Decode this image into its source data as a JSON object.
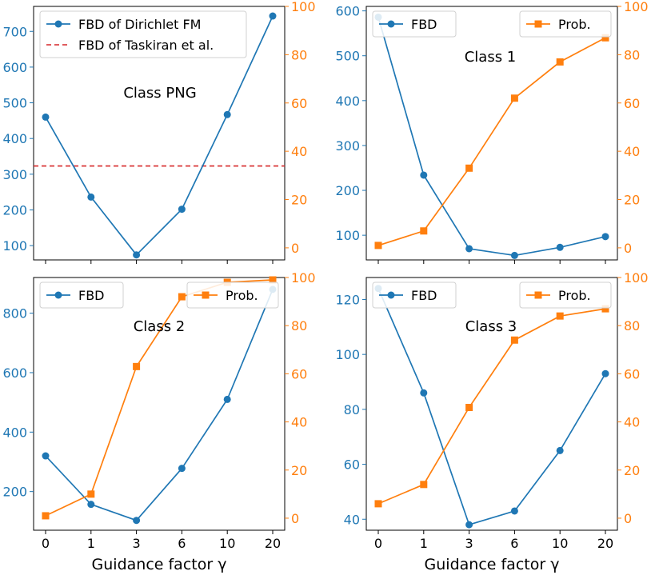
{
  "colors": {
    "fbd": "#1f77b4",
    "prob": "#ff7f0e",
    "baseline": "#d62728"
  },
  "shared_xlabel": "Guidance factor γ",
  "chart_data": [
    {
      "type": "line",
      "annotation": "Class PNG",
      "categories": [
        "0",
        "1",
        "3",
        "6",
        "10",
        "20"
      ],
      "y_left": {
        "lim": [
          60,
          770
        ],
        "ticks": [
          "100",
          "200",
          "300",
          "400",
          "500",
          "600",
          "700"
        ]
      },
      "y_right": {
        "lim": [
          -5,
          100
        ],
        "ticks": [
          "0",
          "20",
          "40",
          "60",
          "80",
          "100"
        ]
      },
      "series": [
        {
          "name": "FBD of Dirichlet FM",
          "axis": "left",
          "marker": "circle",
          "color": "#1f77b4",
          "values": [
            460,
            236,
            74,
            202,
            467,
            743
          ]
        }
      ],
      "reference_lines": [
        {
          "name": "FBD of Taskiran et al.",
          "axis": "left",
          "value": 323,
          "style": "dashed",
          "color": "#d62728"
        }
      ],
      "legend": {
        "placement": "top-left",
        "entries": [
          "FBD of Dirichlet FM",
          "FBD of Taskiran et al."
        ]
      },
      "show_x_ticklabels": false
    },
    {
      "type": "line",
      "annotation": "Class 1",
      "categories": [
        "0",
        "1",
        "3",
        "6",
        "10",
        "20"
      ],
      "y_left": {
        "lim": [
          45,
          610
        ],
        "ticks": [
          "100",
          "200",
          "300",
          "400",
          "500",
          "600"
        ]
      },
      "y_right": {
        "lim": [
          -5,
          100
        ],
        "ticks": [
          "0",
          "20",
          "40",
          "60",
          "80",
          "100"
        ]
      },
      "series": [
        {
          "name": "FBD",
          "axis": "left",
          "marker": "circle",
          "color": "#1f77b4",
          "values": [
            586,
            234,
            70,
            55,
            73,
            97
          ]
        },
        {
          "name": "Prob.",
          "axis": "right",
          "marker": "square",
          "color": "#ff7f0e",
          "values": [
            1,
            7,
            33,
            62,
            77,
            87
          ]
        }
      ],
      "legend_left": {
        "placement": "top-left",
        "entries": [
          "FBD"
        ]
      },
      "legend_right": {
        "placement": "top-right",
        "entries": [
          "Prob."
        ]
      },
      "show_x_ticklabels": false
    },
    {
      "type": "line",
      "annotation": "Class 2",
      "categories": [
        "0",
        "1",
        "3",
        "6",
        "10",
        "20"
      ],
      "y_left": {
        "lim": [
          70,
          920
        ],
        "ticks": [
          "200",
          "400",
          "600",
          "800"
        ]
      },
      "y_right": {
        "lim": [
          -5,
          100
        ],
        "ticks": [
          "0",
          "20",
          "40",
          "60",
          "80",
          "100"
        ]
      },
      "series": [
        {
          "name": "FBD",
          "axis": "left",
          "marker": "circle",
          "color": "#1f77b4",
          "values": [
            320,
            157,
            103,
            278,
            510,
            880
          ]
        },
        {
          "name": "Prob.",
          "axis": "right",
          "marker": "square",
          "color": "#ff7f0e",
          "values": [
            1,
            10,
            63,
            92,
            98,
            99
          ]
        }
      ],
      "legend_left": {
        "placement": "top-left",
        "entries": [
          "FBD"
        ]
      },
      "legend_right": {
        "placement": "top-right",
        "entries": [
          "Prob."
        ]
      },
      "xlabel": "Guidance factor γ",
      "show_x_ticklabels": true
    },
    {
      "type": "line",
      "annotation": "Class 3",
      "categories": [
        "0",
        "1",
        "3",
        "6",
        "10",
        "20"
      ],
      "y_left": {
        "lim": [
          36,
          128
        ],
        "ticks": [
          "40",
          "60",
          "80",
          "100",
          "120"
        ]
      },
      "y_right": {
        "lim": [
          -5,
          100
        ],
        "ticks": [
          "0",
          "20",
          "40",
          "60",
          "80",
          "100"
        ]
      },
      "series": [
        {
          "name": "FBD",
          "axis": "left",
          "marker": "circle",
          "color": "#1f77b4",
          "values": [
            124,
            86,
            38,
            43,
            65,
            93
          ]
        },
        {
          "name": "Prob.",
          "axis": "right",
          "marker": "square",
          "color": "#ff7f0e",
          "values": [
            6,
            14,
            46,
            74,
            84,
            87
          ]
        }
      ],
      "legend_left": {
        "placement": "top-left",
        "entries": [
          "FBD"
        ]
      },
      "legend_right": {
        "placement": "top-right",
        "entries": [
          "Prob."
        ]
      },
      "xlabel": "Guidance factor γ",
      "show_x_ticklabels": true
    }
  ]
}
